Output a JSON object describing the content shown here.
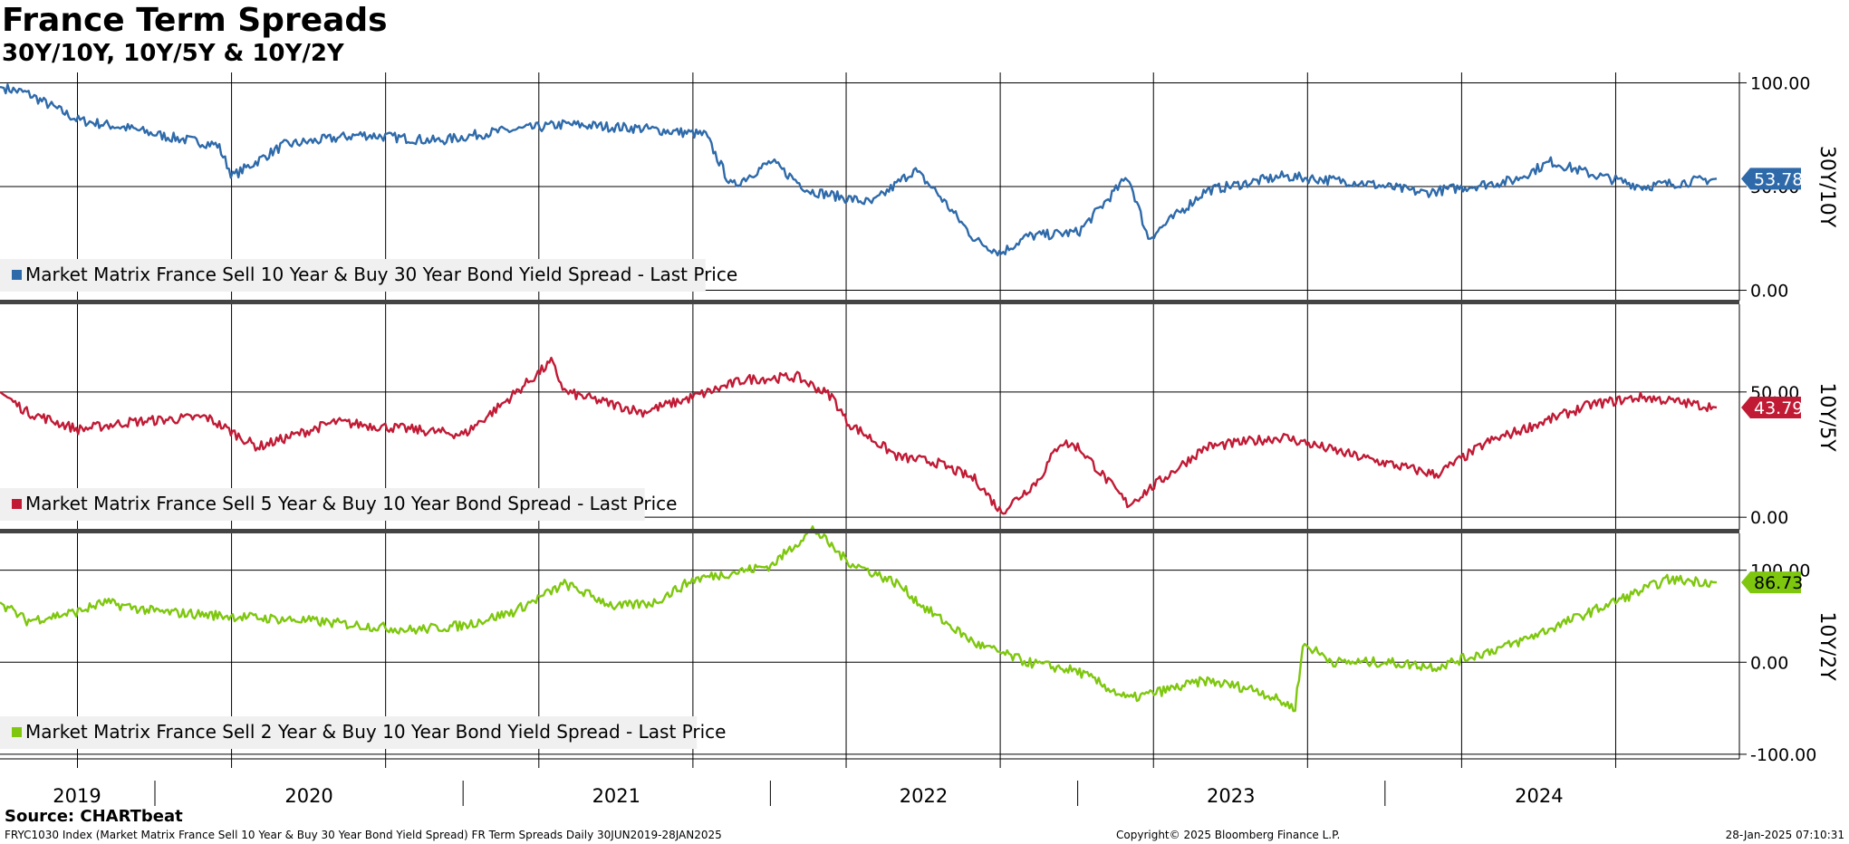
{
  "title": "France Term Spreads",
  "subtitle": "30Y/10Y, 10Y/5Y & 10Y/2Y",
  "source": "Source: CHARTbeat",
  "footer": {
    "left": "FRYC1030 Index (Market Matrix France Sell 10 Year & Buy 30 Year Bond Yield Spread) FR Term Spreads  Daily 30JUN2019-28JAN2025",
    "center": "Copyright© 2025 Bloomberg Finance L.P.",
    "right": "28-Jan-2025 07:10:31"
  },
  "chart_data": [
    {
      "type": "line",
      "ylabel": "30Y/10Y",
      "ylim": [
        -5,
        105
      ],
      "yticks": [
        {
          "v": 100,
          "t": "100.00"
        },
        {
          "v": 50,
          "t": "50.00"
        },
        {
          "v": 0,
          "t": "0.00"
        }
      ],
      "grid": true,
      "series": [
        {
          "name": "Market Matrix France Sell 10 Year & Buy 30 Year Bond Yield Spread - Last Price",
          "color": "#2e6aaa",
          "last": "53.78",
          "x": [
            "2019-06-30",
            "2019-08-01",
            "2019-10-01",
            "2019-12-01",
            "2020-01-15",
            "2020-03-15",
            "2020-04-01",
            "2020-06-01",
            "2020-09-01",
            "2020-12-01",
            "2021-02-01",
            "2021-05-01",
            "2021-08-01",
            "2021-10-15",
            "2021-11-15",
            "2022-01-01",
            "2022-02-15",
            "2022-05-01",
            "2022-06-20",
            "2022-07-15",
            "2022-09-01",
            "2022-10-01",
            "2022-11-01",
            "2023-01-01",
            "2023-03-01",
            "2023-03-25",
            "2023-06-01",
            "2023-09-01",
            "2023-12-01",
            "2024-02-15",
            "2024-06-01",
            "2024-07-15",
            "2024-09-01",
            "2024-11-01",
            "2025-01-28"
          ],
          "y": [
            98,
            95,
            82,
            78,
            74,
            70,
            55,
            70,
            75,
            72,
            76,
            80,
            78,
            75,
            50,
            62,
            48,
            42,
            58,
            48,
            24,
            18,
            26,
            28,
            55,
            25,
            48,
            55,
            52,
            47,
            53,
            62,
            56,
            50,
            53.78
          ]
        }
      ]
    },
    {
      "type": "line",
      "ylabel": "10Y/5Y",
      "ylim": [
        -5,
        85
      ],
      "yticks": [
        {
          "v": 50,
          "t": "50.00"
        },
        {
          "v": 0,
          "t": "0.00"
        }
      ],
      "grid": true,
      "series": [
        {
          "name": "Market Matrix France Sell 5 Year & Buy 10 Year Bond Spread - Last Price",
          "color": "#c11a35",
          "last": "43.79",
          "x": [
            "2019-06-30",
            "2019-08-01",
            "2019-10-01",
            "2019-12-01",
            "2020-03-01",
            "2020-05-01",
            "2020-08-01",
            "2020-11-01",
            "2021-01-01",
            "2021-02-15",
            "2021-04-15",
            "2021-05-01",
            "2021-08-01",
            "2021-10-01",
            "2021-12-01",
            "2022-02-01",
            "2022-03-15",
            "2022-04-01",
            "2022-06-01",
            "2022-07-15",
            "2022-09-01",
            "2022-10-01",
            "2022-11-15",
            "2022-12-10",
            "2023-01-01",
            "2023-03-01",
            "2023-06-01",
            "2023-09-01",
            "2023-12-01",
            "2024-03-01",
            "2024-05-01",
            "2024-09-01",
            "2024-11-01",
            "2025-01-28"
          ],
          "y": [
            50,
            42,
            35,
            38,
            40,
            28,
            38,
            35,
            33,
            45,
            62,
            50,
            42,
            48,
            55,
            56,
            48,
            38,
            24,
            22,
            15,
            2,
            15,
            30,
            28,
            5,
            28,
            32,
            24,
            17,
            30,
            45,
            48,
            43.79
          ]
        }
      ]
    },
    {
      "type": "line",
      "ylabel": "10Y/2Y",
      "ylim": [
        -105,
        140
      ],
      "yticks": [
        {
          "v": 100,
          "t": "100.00"
        },
        {
          "v": 0,
          "t": "0.00"
        },
        {
          "v": -100,
          "t": "-100.00"
        }
      ],
      "grid": true,
      "series": [
        {
          "name": "Market Matrix France Sell 2 Year & Buy 10 Year Bond Yield Spread - Last Price",
          "color": "#7ec70e",
          "last": "86.73",
          "x": [
            "2019-06-30",
            "2019-08-01",
            "2019-10-01",
            "2019-11-01",
            "2020-01-01",
            "2020-04-01",
            "2020-07-01",
            "2020-11-01",
            "2021-01-01",
            "2021-03-01",
            "2021-05-01",
            "2021-07-01",
            "2021-08-15",
            "2021-10-01",
            "2022-01-01",
            "2022-02-01",
            "2022-02-20",
            "2022-04-01",
            "2022-06-01",
            "2022-07-01",
            "2022-09-01",
            "2022-11-01",
            "2023-01-01",
            "2023-03-01",
            "2023-06-01",
            "2023-08-01",
            "2023-09-15",
            "2023-09-25",
            "2023-11-01",
            "2024-01-01",
            "2024-03-01",
            "2024-06-01",
            "2024-09-01",
            "2024-12-01",
            "2025-01-28"
          ],
          "y": [
            65,
            45,
            55,
            65,
            55,
            50,
            45,
            35,
            40,
            55,
            85,
            60,
            65,
            90,
            105,
            130,
            145,
            110,
            85,
            60,
            20,
            0,
            -10,
            -40,
            -20,
            -30,
            -50,
            20,
            0,
            0,
            -5,
            20,
            55,
            90,
            86.73
          ]
        }
      ]
    }
  ],
  "x_axis": {
    "years": [
      "2019",
      "2020",
      "2021",
      "2022",
      "2023",
      "2024"
    ],
    "year_ticks": [
      "2019-09-30",
      "2020-03-31",
      "2020-09-30",
      "2021-03-31",
      "2021-09-30",
      "2022-03-31",
      "2022-09-30",
      "2023-03-31",
      "2023-09-30",
      "2024-03-31",
      "2024-09-30"
    ],
    "year_boundaries": [
      "2019-12-31",
      "2020-12-31",
      "2021-12-31",
      "2022-12-31",
      "2023-12-31"
    ],
    "year_label_centers": [
      "2019-10-31",
      "2020-07-01",
      "2021-07-01",
      "2022-07-01",
      "2023-07-01",
      "2024-07-01"
    ]
  }
}
